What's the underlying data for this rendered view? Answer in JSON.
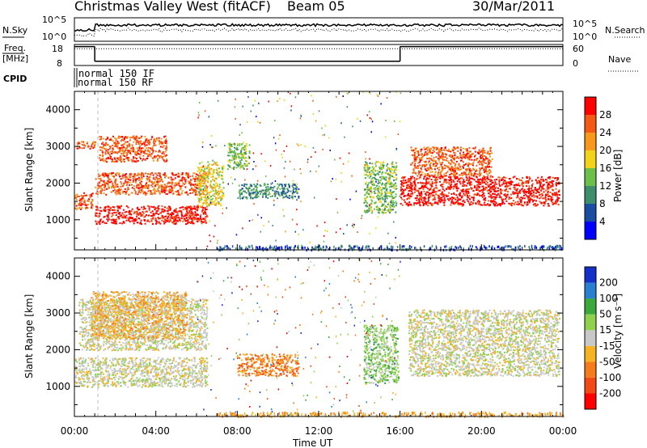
{
  "header": {
    "station": "Christmas Valley West (fitACF)",
    "beam": "Beam 05",
    "date": "30/Mar/2011"
  },
  "side_labels": {
    "nsky": "N.Sky",
    "freq": "Freq.",
    "freq_unit": "[MHz]",
    "cpid": "CPID",
    "nsearch": "N.Search",
    "nave": "Nave"
  },
  "noise_axis": {
    "top": "10^5",
    "bottom": "10^0"
  },
  "freq_axis": {
    "top": "18",
    "bottom": "8"
  },
  "nave_axis": {
    "top": "60",
    "bottom": "0"
  },
  "cpid_labels": [
    "normal 150 IF",
    "normal 150 RF"
  ],
  "x_axis": {
    "label": "Time UT",
    "ticks": [
      "00:00",
      "04:00",
      "08:00",
      "12:00",
      "16:00",
      "20:00",
      "00:00"
    ]
  },
  "power_panel": {
    "ylabel": "Slant Range [km]",
    "yticks": [
      "1000",
      "2000",
      "3000",
      "4000"
    ],
    "colorbar_label": "Power [dB]",
    "colorbar_ticks": [
      "4",
      "8",
      "12",
      "16",
      "20",
      "24",
      "28"
    ],
    "colors": [
      "#0000ff",
      "#1a4ea0",
      "#3e8e6e",
      "#6cbf4a",
      "#f2d31b",
      "#f59a1c",
      "#f35a16",
      "#ff0000"
    ]
  },
  "velocity_panel": {
    "ylabel": "Slant Range [km]",
    "yticks": [
      "1000",
      "2000",
      "3000",
      "4000"
    ],
    "colorbar_label": "Velocity [m s⁻¹]",
    "colorbar_ticks": [
      "200",
      "100",
      "50",
      "15",
      "-15",
      "-50",
      "-100",
      "-200"
    ],
    "colors": [
      "#1530c8",
      "#2a7fd0",
      "#3ca83c",
      "#8fd14f",
      "#c8c8c8",
      "#f5b324",
      "#f57c1c",
      "#f24a16",
      "#ff0000"
    ]
  },
  "chart_data": {
    "type": "heatmap",
    "x_range_hours": [
      0,
      24
    ],
    "y_range_km": [
      180,
      4500
    ],
    "power_bands": [
      {
        "t0": 0.0,
        "t1": 0.9,
        "r0": 1300,
        "r1": 1750,
        "level": 6
      },
      {
        "t0": 0.0,
        "t1": 1.0,
        "r0": 2950,
        "r1": 3150,
        "level": 6
      },
      {
        "t0": 1.0,
        "t1": 6.5,
        "r0": 900,
        "r1": 1400,
        "level": 7
      },
      {
        "t0": 1.0,
        "t1": 6.5,
        "r0": 1700,
        "r1": 2300,
        "level": 6
      },
      {
        "t0": 1.2,
        "t1": 4.5,
        "r0": 2600,
        "r1": 3300,
        "level": 6
      },
      {
        "t0": 6.0,
        "t1": 7.3,
        "r0": 1400,
        "r1": 2600,
        "level": 4
      },
      {
        "t0": 7.5,
        "t1": 8.6,
        "r0": 2400,
        "r1": 3100,
        "level": 3
      },
      {
        "t0": 8.0,
        "t1": 11.0,
        "r0": 1600,
        "r1": 2000,
        "level": 2
      },
      {
        "t0": 14.2,
        "t1": 15.8,
        "r0": 1200,
        "r1": 2600,
        "level": 3
      },
      {
        "t0": 16.0,
        "t1": 23.8,
        "r0": 1400,
        "r1": 2200,
        "level": 7
      },
      {
        "t0": 16.5,
        "t1": 20.5,
        "r0": 2200,
        "r1": 3000,
        "level": 6
      }
    ],
    "velocity_bands": [
      {
        "t0": 0.0,
        "t1": 6.5,
        "r0": 1000,
        "r1": 1800,
        "level": 4
      },
      {
        "t0": 0.2,
        "t1": 6.5,
        "r0": 2000,
        "r1": 3400,
        "level": 4
      },
      {
        "t0": 0.8,
        "t1": 5.5,
        "r0": 2300,
        "r1": 3600,
        "level": 5
      },
      {
        "t0": 8.0,
        "t1": 11.0,
        "r0": 1300,
        "r1": 1900,
        "level": 6
      },
      {
        "t0": 14.2,
        "t1": 15.9,
        "r0": 1100,
        "r1": 2700,
        "level": 3
      },
      {
        "t0": 16.4,
        "t1": 23.8,
        "r0": 1300,
        "r1": 3100,
        "level": 4
      }
    ],
    "frequency_mhz": [
      {
        "t0": 0.0,
        "t1": 1.0,
        "value": 17
      },
      {
        "t0": 1.0,
        "t1": 16.0,
        "value": 10
      },
      {
        "t0": 16.0,
        "t1": 24.0,
        "value": 17
      }
    ],
    "nave": [
      {
        "t0": 0.0,
        "t1": 24.0,
        "value": 48
      }
    ]
  }
}
